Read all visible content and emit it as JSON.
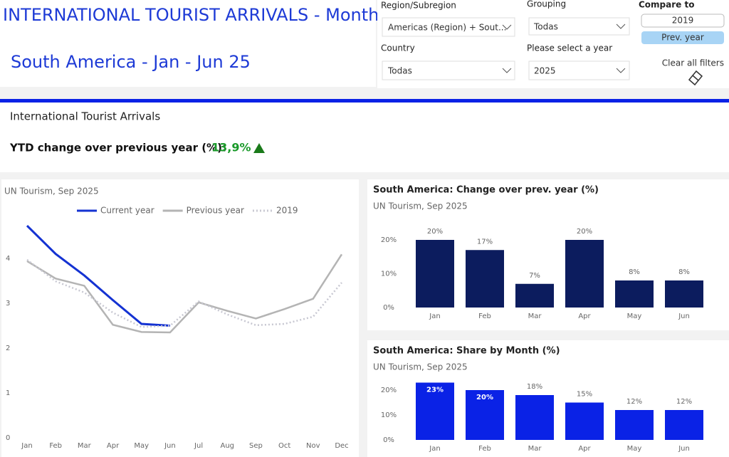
{
  "header": {
    "title": "INTERNATIONAL TOURIST ARRIVALS - Monthly",
    "subtitle": "South America - Jan - Jun 25"
  },
  "filters": {
    "region": {
      "label": "Region/Subregion",
      "value": "Americas (Region) + Sout..."
    },
    "grouping": {
      "label": "Grouping",
      "value": "Todas"
    },
    "compare": {
      "label": "Compare to",
      "options": [
        "2019",
        "Prev. year"
      ]
    },
    "country": {
      "label": "Country",
      "value": "Todas"
    },
    "year": {
      "label": "Please select a year",
      "value": "2025"
    },
    "clear": "Clear all filters"
  },
  "kpi": {
    "title": "International Tourist Arrivals",
    "label": "YTD change over previous year (%):",
    "value": "13,9%"
  },
  "chart_data": [
    {
      "type": "line",
      "subtitle": "UN Tourism, Sep 2025",
      "categories": [
        "Jan",
        "Feb",
        "Mar",
        "Apr",
        "May",
        "Jun",
        "Jul",
        "Aug",
        "Sep",
        "Oct",
        "Nov",
        "Dec"
      ],
      "series": [
        {
          "name": "Current year",
          "color": "#1432d2",
          "values": [
            4.73,
            4.1,
            3.62,
            3.07,
            2.54,
            2.5,
            null,
            null,
            null,
            null,
            null,
            null
          ]
        },
        {
          "name": "Previous year",
          "color": "#b4b4b4",
          "values": [
            3.94,
            3.55,
            3.39,
            2.52,
            2.36,
            2.35,
            3.02,
            2.83,
            2.66,
            2.87,
            3.1,
            4.09
          ]
        },
        {
          "name": "2019",
          "color": "#c8c8d2",
          "dash": true,
          "values": [
            3.97,
            3.49,
            3.24,
            2.79,
            2.47,
            2.5,
            3.04,
            2.75,
            2.51,
            2.54,
            2.7,
            3.46
          ]
        }
      ],
      "ylim": [
        0,
        5
      ],
      "yticks": [
        0,
        1,
        2,
        3,
        4
      ]
    },
    {
      "type": "bar",
      "title": "South America: Change over prev. year (%)",
      "subtitle": "UN Tourism, Sep 2025",
      "categories": [
        "Jan",
        "Feb",
        "Mar",
        "Apr",
        "May",
        "Jun"
      ],
      "values": [
        20,
        17,
        7,
        20,
        8,
        8
      ],
      "value_labels": [
        "20%",
        "17%",
        "7%",
        "20%",
        "8%",
        "8%"
      ],
      "color": "#0c1c5e",
      "ylim": [
        0,
        24
      ],
      "yticks": [
        {
          "value": 0,
          "label": "0%"
        },
        {
          "value": 10,
          "label": "10%"
        },
        {
          "value": 20,
          "label": "20%"
        }
      ]
    },
    {
      "type": "bar",
      "title": "South America: Share by Month (%)",
      "subtitle": "UN Tourism, Sep 2025",
      "categories": [
        "Jan",
        "Feb",
        "Mar",
        "Apr",
        "May",
        "Jun"
      ],
      "values": [
        23,
        20,
        18,
        15,
        12,
        12
      ],
      "value_labels": [
        "23%",
        "20%",
        "18%",
        "15%",
        "12%",
        "12%"
      ],
      "color": "#0a22e6",
      "ylim": [
        0,
        25
      ],
      "yticks": [
        {
          "value": 0,
          "label": "0%"
        },
        {
          "value": 10,
          "label": "10%"
        },
        {
          "value": 20,
          "label": "20%"
        }
      ]
    }
  ]
}
